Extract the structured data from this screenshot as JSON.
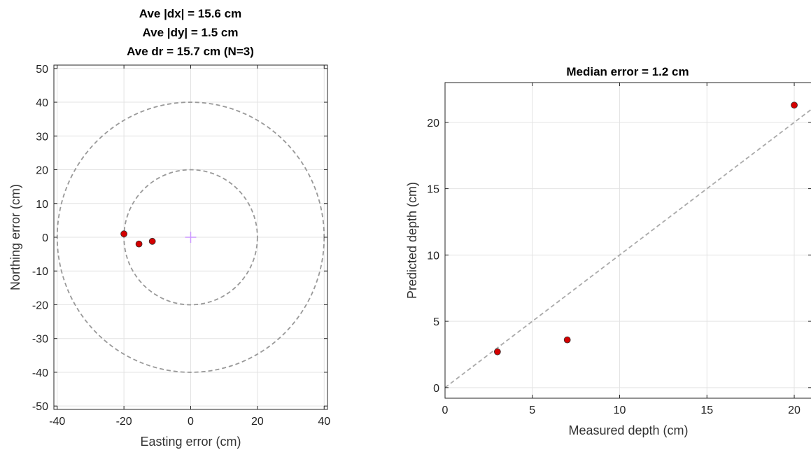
{
  "chart_data": [
    {
      "type": "scatter",
      "title": [
        "Ave |dx| = 15.6 cm",
        "Ave |dy| = 1.5 cm",
        "Ave dr = 15.7 cm  (N=3)"
      ],
      "xlabel": "Easting error (cm)",
      "ylabel": "Northing error (cm)",
      "xlim": [
        -41,
        41
      ],
      "ylim": [
        -51,
        51
      ],
      "xticks": [
        -40,
        -20,
        0,
        20,
        40
      ],
      "yticks": [
        -50,
        -40,
        -30,
        -20,
        -10,
        0,
        10,
        20,
        30,
        40,
        50
      ],
      "grid": true,
      "circles": [
        {
          "radius": 20,
          "style": "dashed",
          "color": "#999999"
        },
        {
          "radius": 40,
          "style": "dashed",
          "color": "#999999"
        }
      ],
      "center_marker": {
        "x": 0,
        "y": 0,
        "symbol": "plus",
        "color": "#cc99ff"
      },
      "points": [
        {
          "x": -20.0,
          "y": 1.0
        },
        {
          "x": -15.5,
          "y": -2.0
        },
        {
          "x": -11.5,
          "y": -1.2
        }
      ],
      "point_color": "#d40000"
    },
    {
      "type": "scatter",
      "title": [
        "Median error = 1.2 cm"
      ],
      "xlabel": "Measured depth (cm)",
      "ylabel": "Predicted depth (cm)",
      "xlim": [
        0,
        21
      ],
      "ylim": [
        -0.8,
        23
      ],
      "xticks": [
        0,
        5,
        10,
        15,
        20
      ],
      "yticks": [
        0,
        5,
        10,
        15,
        20
      ],
      "grid": true,
      "reference_line": {
        "x": [
          0,
          21
        ],
        "y": [
          0,
          21
        ],
        "style": "dashed",
        "color": "#aaaaaa"
      },
      "points": [
        {
          "x": 3,
          "y": 2.7
        },
        {
          "x": 7,
          "y": 3.6
        },
        {
          "x": 20,
          "y": 21.3
        }
      ],
      "point_color": "#d40000"
    }
  ]
}
